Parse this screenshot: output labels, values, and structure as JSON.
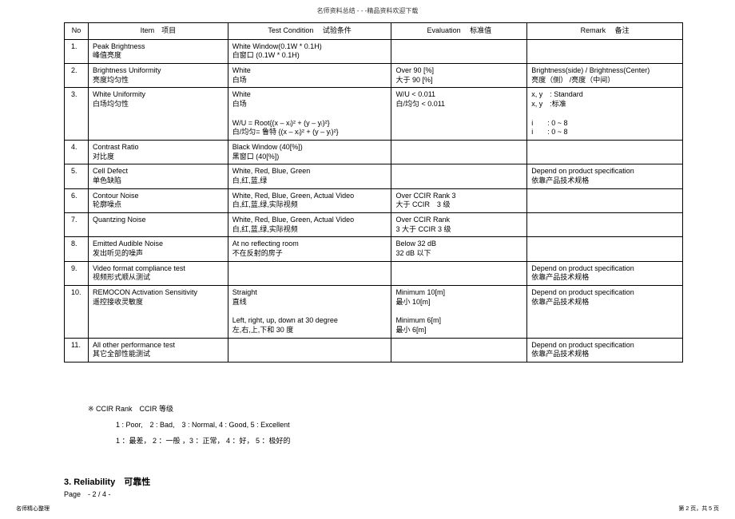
{
  "header": "名师资料总结 - - -精品资料欢迎下载",
  "table": {
    "headers": {
      "no": "No",
      "item": "Item　项目",
      "test": "Test Condition　 试验条件",
      "eval": "Evaluation　 标准值",
      "remark": "Remark　 备注"
    },
    "rows": [
      {
        "no": "1.",
        "item": "Peak Brightness\n峰值亮度",
        "test": "White Window(0.1W * 0.1H)\n白窗口  (0.1W * 0.1H)",
        "eval": "",
        "remark": ""
      },
      {
        "no": "2.",
        "item": "Brightness Uniformity\n亮度均匀性",
        "test": "White\n白场",
        "eval": "Over 90 [%]\n大于  90 [%]",
        "remark": "Brightness(side) / Brightness(Center)\n亮度（侧）  /亮度（中间）"
      },
      {
        "no": "3.",
        "item": "White Uniformity\n白场均匀性",
        "test": "White\n白场\n\nW/U = Root{(x  – xᵢ)²  + (y  – yᵢ)²}\n白/均匀= 鲁特  {(x  – xᵢ)² + (y  – yᵢ)²}",
        "eval": "W/U < 0.011\n白/均匀 < 0.011",
        "remark": "x, y　: Standard\nx, y　:标准\n\ni　　: 0 ~ 8\ni　　: 0 ~ 8"
      },
      {
        "no": "4.",
        "item": "Contrast Ratio\n对比度",
        "test": "Black Window (40[%])\n黑窗口  (40[%])",
        "eval": "",
        "remark": ""
      },
      {
        "no": "5.",
        "item": "Cell Defect\n单色缺陷",
        "test": "White, Red, Blue, Green\n白,红,蓝,绿",
        "eval": "",
        "remark": "Depend on product specification\n依靠产品技术规格"
      },
      {
        "no": "6.",
        "item": "Contour Noise\n轮廓噪点",
        "test": "White, Red, Blue, Green, Actual Video\n白,红,蓝,绿,实际视频",
        "eval": "Over CCIR Rank 3\n大于  CCIR　3 级",
        "remark": ""
      },
      {
        "no": "7.",
        "item": "Quantzing Noise",
        "test": "White, Red, Blue, Green, Actual Video\n白,红,蓝,绿,实际视频",
        "eval": "Over CCIR Rank\n3 大于  CCIR  3 级",
        "remark": ""
      },
      {
        "no": "8.",
        "item": "Emitted Audible Noise\n发出听见的噪声",
        "test": "At no reflecting room\n不在反射的房子",
        "eval": "Below 32 dB\n32 dB  以下",
        "remark": ""
      },
      {
        "no": "9.",
        "item": "Video format compliance test\n视频形式顺从测试",
        "test": "",
        "eval": "",
        "remark": "Depend on product specification\n依靠产品技术规格"
      },
      {
        "no": "10.",
        "item": "REMOCON Activation Sensitivity\n遥控接收灵敏度",
        "test": "Straight\n直线\n\nLeft, right, up, down at 30 degree\n左,右,上,下和 30 度",
        "eval": "Minimum 10[m]\n最小  10[m]\n\nMinimum 6[m]\n最小  6[m]",
        "remark": "Depend on product specification\n依靠产品技术规格"
      },
      {
        "no": "11.",
        "item": "All other performance test\n其它全部性能测试",
        "test": "",
        "eval": "",
        "remark": "Depend on product specification\n依靠产品技术规格"
      }
    ]
  },
  "notes": {
    "n1": "※  CCIR Rank　CCIR  等级",
    "n2": "1 : Poor,　2 : Bad,　3 : Normal, 4 : Good, 5 : Excellent",
    "n3": "1 ：最差， 2 ：一般 ，3 ：正常， 4 ：好， 5 ：极好的"
  },
  "section_title": "3. Reliability　可靠性",
  "page": "Page　- 2 / 4 -",
  "footer_left": "名师精心整理",
  "footer_right": "第 2 页，共 5 页"
}
